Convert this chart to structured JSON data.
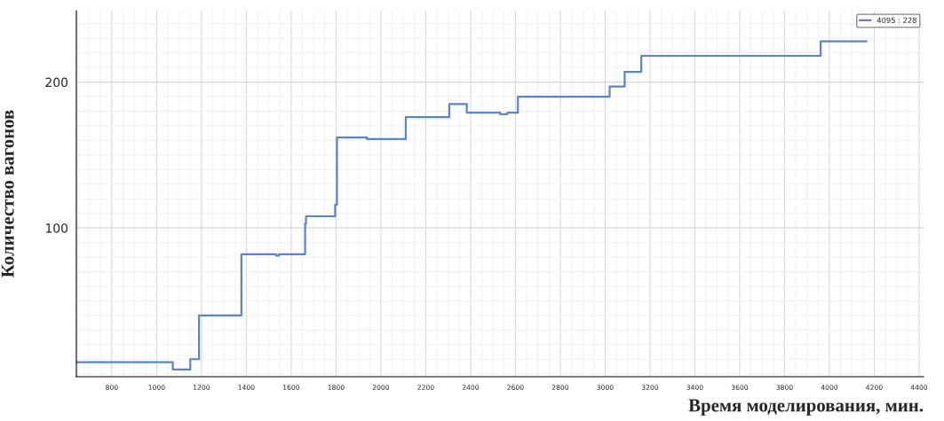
{
  "chart_data": {
    "type": "step",
    "xlabel": "Время моделирования, мин.",
    "ylabel": "Количество вагонов",
    "xlim": [
      642,
      4420
    ],
    "ylim": [
      -2,
      249
    ],
    "xticks": [
      800,
      1000,
      1200,
      1400,
      1600,
      1800,
      2000,
      2200,
      2400,
      2600,
      2800,
      3000,
      3200,
      3400,
      3600,
      3800,
      4000,
      4200,
      4400
    ],
    "yticks": [
      100,
      200
    ],
    "grid": true,
    "legend": "top right",
    "series": [
      {
        "name": "4095 : 228",
        "color": "#5b85c5",
        "x": [
          642,
          1072,
          1150,
          1189,
          1378,
          1532,
          1545,
          1662,
          1666,
          1796,
          1804,
          1938,
          2111,
          2305,
          2383,
          2532,
          2564,
          2611,
          3020,
          3087,
          3161,
          3961,
          4166
        ],
        "values": [
          8,
          3,
          10,
          40,
          82,
          81,
          82,
          103,
          108,
          116,
          162,
          161,
          176,
          185,
          179,
          178,
          179,
          190,
          197,
          207,
          218,
          228,
          228
        ]
      }
    ]
  }
}
